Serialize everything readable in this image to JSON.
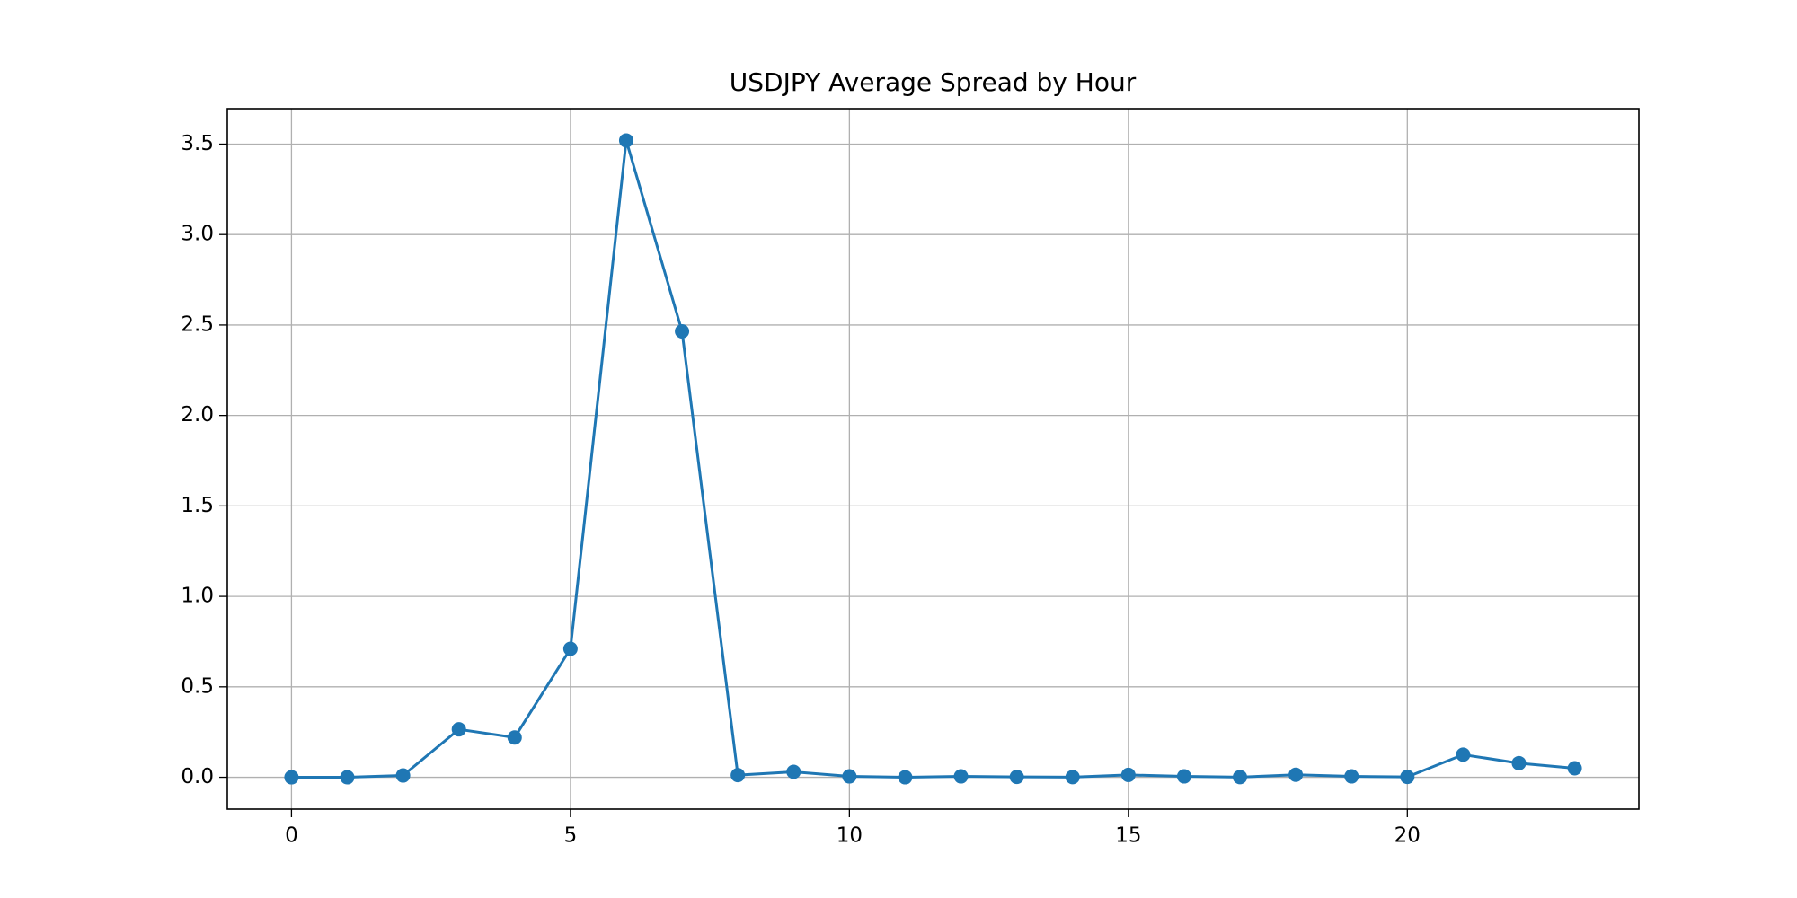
{
  "chart_data": {
    "type": "line",
    "title": "USDJPY Average Spread by Hour",
    "x": [
      0,
      1,
      2,
      3,
      4,
      5,
      6,
      7,
      8,
      9,
      10,
      11,
      12,
      13,
      14,
      15,
      16,
      17,
      18,
      19,
      20,
      21,
      22,
      23
    ],
    "values": [
      0.0,
      0.0,
      0.01,
      0.265,
      0.22,
      0.71,
      3.52,
      2.465,
      0.012,
      0.03,
      0.005,
      0.0,
      0.005,
      0.002,
      0.001,
      0.013,
      0.005,
      0.001,
      0.014,
      0.005,
      0.002,
      0.125,
      0.078,
      0.05
    ],
    "color": "#1f77b4",
    "xlim": [
      -1.15,
      24.15
    ],
    "xticks": [
      0,
      5,
      10,
      15,
      20
    ],
    "ylim": [
      -0.176,
      3.696
    ],
    "yticks": [
      {
        "value": 0,
        "label": "0.0"
      },
      0.5,
      {
        "value": 1,
        "label": "1.0"
      },
      1.5,
      {
        "value": 2,
        "label": "2.0"
      },
      2.5,
      {
        "value": 3,
        "label": "3.0"
      },
      3.5
    ],
    "grid": true
  }
}
